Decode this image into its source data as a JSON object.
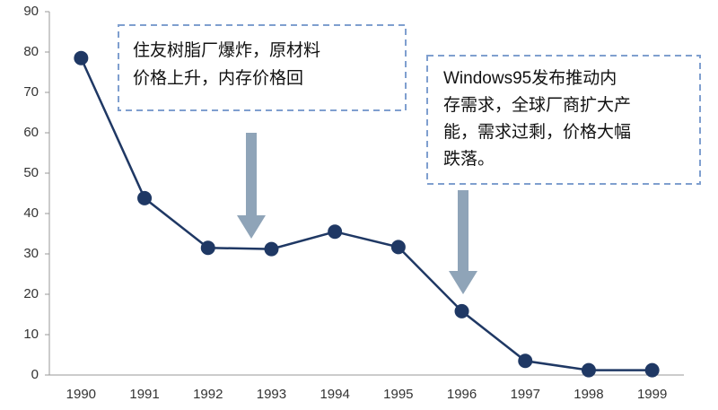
{
  "chart_data": {
    "type": "line",
    "categories": [
      "1990",
      "1991",
      "1992",
      "1993",
      "1994",
      "1995",
      "1996",
      "1997",
      "1998",
      "1999"
    ],
    "values": [
      78.5,
      43.8,
      31.5,
      31.2,
      35.5,
      31.7,
      15.8,
      3.5,
      1.2,
      1.2
    ],
    "color": "#1f3864",
    "ylim": [
      0,
      90
    ],
    "yticks": [
      0,
      10,
      20,
      30,
      40,
      50,
      60,
      70,
      80,
      90
    ],
    "annotations": [
      {
        "lines": [
          "住友树脂厂爆炸，原材料",
          "价格上升，内存价格回"
        ]
      },
      {
        "lines": [
          "Windows95发布推动内",
          "存需求，全球厂商扩大产",
          "能，需求过剩，价格大幅",
          "跌落。"
        ]
      }
    ]
  }
}
